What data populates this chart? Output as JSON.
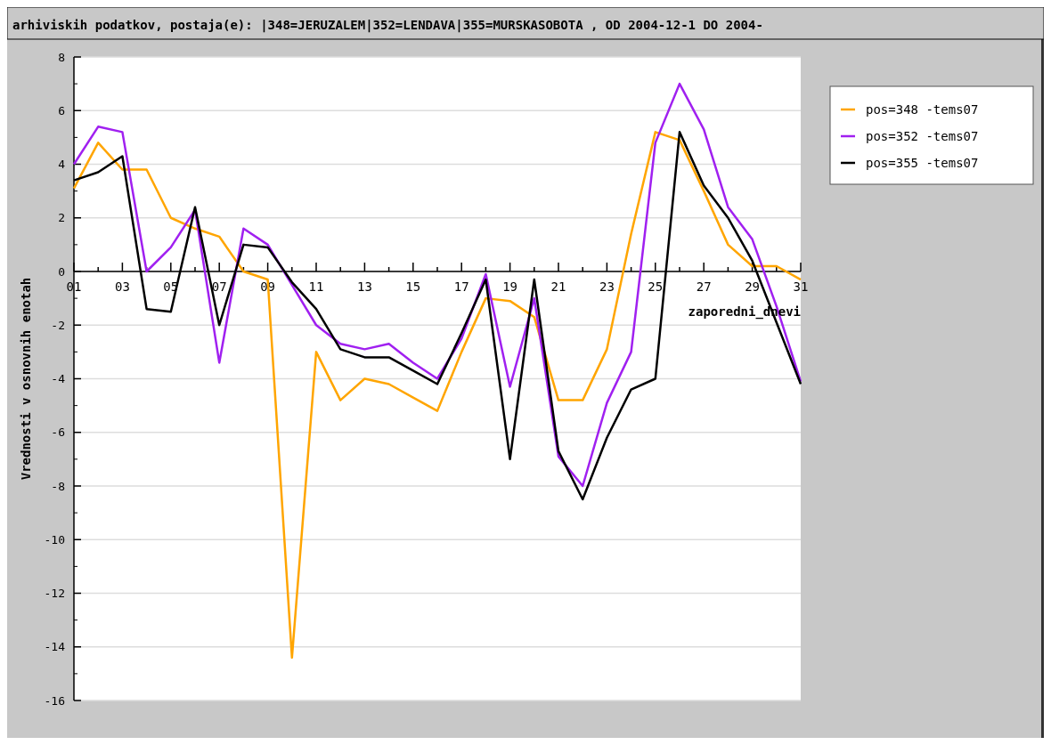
{
  "chart_data": {
    "type": "line",
    "title": "arhiviskih podatkov, postaja(e): |348=JERUZALEM|352=LENDAVA|355=MURSKASOBOTA , OD 2004-12-1 DO 2004-",
    "xlabel": "zaporedni_dnevi",
    "ylabel": "Vrednosti v osnovnih enotah",
    "categories": [
      "01",
      null,
      "03",
      null,
      "05",
      null,
      "07",
      null,
      "09",
      null,
      "11",
      null,
      "13",
      null,
      "15",
      null,
      "17",
      null,
      "19",
      null,
      "21",
      null,
      "23",
      null,
      "25",
      null,
      "27",
      null,
      "29",
      null,
      "31"
    ],
    "series": [
      {
        "name": "pos=348 -tems07",
        "color": "#ffa500",
        "values": [
          3.1,
          4.8,
          3.8,
          3.8,
          2.0,
          1.6,
          1.3,
          0.0,
          -0.3,
          -14.4,
          -3.0,
          -4.8,
          -4.0,
          -4.2,
          -4.7,
          -5.2,
          -3.0,
          -1.0,
          -1.1,
          -1.7,
          -4.8,
          -4.8,
          -2.9,
          1.4,
          5.2,
          4.9,
          3.0,
          1.0,
          0.2,
          0.2,
          -0.3
        ]
      },
      {
        "name": "pos=352 -tems07",
        "color": "#a020f0",
        "values": [
          4.0,
          5.4,
          5.2,
          0.0,
          0.9,
          2.3,
          -3.4,
          1.6,
          1.0,
          -0.5,
          -2.0,
          -2.7,
          -2.9,
          -2.7,
          -3.4,
          -4.0,
          -2.5,
          -0.1,
          -4.3,
          -1.0,
          -6.9,
          -8.0,
          -4.9,
          -3.0,
          4.8,
          7.0,
          5.3,
          2.4,
          1.2,
          -1.3,
          -4.1
        ]
      },
      {
        "name": "pos=355 -tems07",
        "color": "#000000",
        "values": [
          3.4,
          3.7,
          4.3,
          -1.4,
          -1.5,
          2.4,
          -2.0,
          1.0,
          0.9,
          -0.4,
          -1.4,
          -2.9,
          -3.2,
          -3.2,
          -3.7,
          -4.2,
          -2.3,
          -0.3,
          -7.0,
          -0.3,
          -6.7,
          -8.5,
          -6.2,
          -4.4,
          -4.0,
          5.2,
          3.2,
          2.0,
          0.4,
          -1.9,
          -4.2
        ]
      }
    ],
    "ylim": [
      -16,
      8
    ],
    "yticks": [
      -16,
      -14,
      -12,
      -10,
      -8,
      -6,
      -4,
      -2,
      0,
      2,
      4,
      6,
      8
    ],
    "grid": "y",
    "legend": "right",
    "marker": "none",
    "line_style": "solid"
  }
}
